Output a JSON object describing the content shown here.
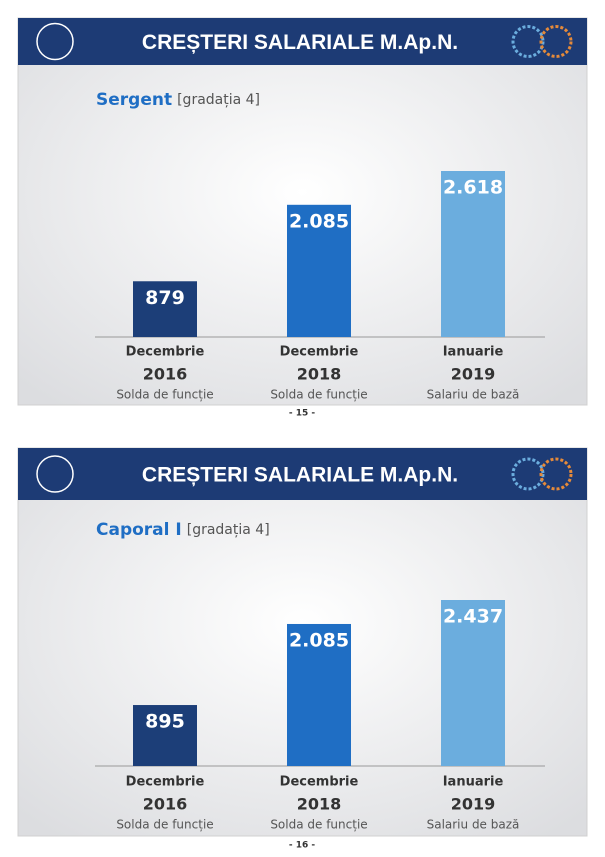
{
  "chart_data": [
    {
      "type": "bar",
      "title": "CREȘTERI SALARIALE M.Ap.N.",
      "subtitle": "Sergent",
      "subtitle_note": "[gradația 4]",
      "categories": [
        [
          "Decembrie",
          "2016",
          "Solda de funcție"
        ],
        [
          "Decembrie",
          "2018",
          "Solda de funcție"
        ],
        [
          "Ianuarie",
          "2019",
          "Salariu de bază"
        ]
      ],
      "values": [
        879,
        2085,
        2618
      ],
      "value_labels": [
        "879",
        "2.085",
        "2.618"
      ],
      "colors": [
        "#1c3e78",
        "#1f6ec4",
        "#6badde"
      ],
      "page_number": "- 15 -"
    },
    {
      "type": "bar",
      "title": "CREȘTERI SALARIALE M.Ap.N.",
      "subtitle": "Caporal I",
      "subtitle_note": "[gradația 4]",
      "categories": [
        [
          "Decembrie",
          "2016",
          "Solda de funcție"
        ],
        [
          "Decembrie",
          "2018",
          "Solda de funcție"
        ],
        [
          "Ianuarie",
          "2019",
          "Salariu de bază"
        ]
      ],
      "values": [
        895,
        2085,
        2437
      ],
      "value_labels": [
        "895",
        "2.085",
        "2.437"
      ],
      "colors": [
        "#1c3e78",
        "#1f6ec4",
        "#6badde"
      ],
      "page_number": "- 16 -"
    }
  ]
}
